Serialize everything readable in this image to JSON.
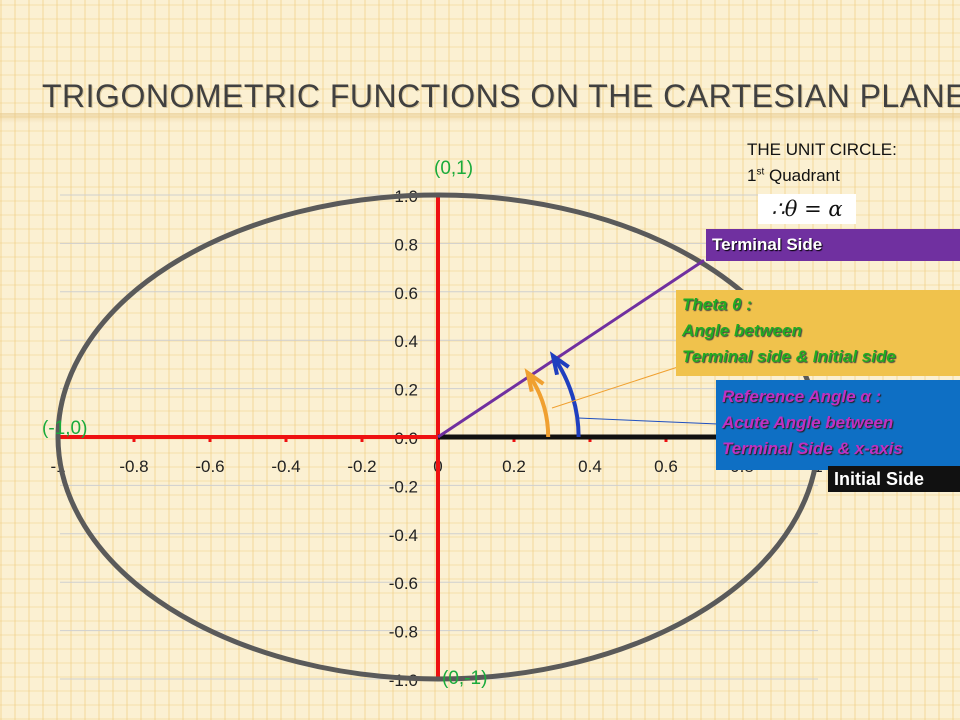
{
  "slide": {
    "title": "TRIGONOMETRIC FUNCTIONS ON THE CARTESIAN PLANE"
  },
  "unit_circle_note": {
    "line1": "THE UNIT CIRCLE:",
    "line2_prefix": "1",
    "line2_sup": "st",
    "line2_suffix": " Quadrant",
    "formula": "∴θ = α"
  },
  "points": {
    "top": "(0,1)",
    "bottom": "(0,-1)",
    "left": "(-1,0)"
  },
  "callouts": {
    "terminal": "Terminal Side",
    "theta": [
      "Theta θ :",
      "Angle between",
      "Terminal side & Initial side"
    ],
    "reference": [
      "Reference Angle α :",
      "Acute Angle between",
      "Terminal Side & x-axis"
    ],
    "initial": "Initial Side"
  },
  "colors": {
    "circle": "#5a5a5a",
    "axes": "#ee1111",
    "terminal_side": "#7030a0",
    "initial_side": "#111111",
    "theta_arc": "#1f3fbf",
    "reference_arc": "#f0a030",
    "point_labels": "#1aab3c"
  },
  "chart_data": {
    "type": "scatter",
    "title": "",
    "xlabel": "",
    "ylabel": "",
    "xlim": [
      -1,
      1
    ],
    "ylim": [
      -1,
      1
    ],
    "grid": true,
    "x_ticks": [
      "-1",
      "-0.8",
      "-0.6",
      "-0.4",
      "-0.2",
      "0",
      "0.2",
      "0.4",
      "0.6",
      "0.8",
      "1"
    ],
    "y_ticks": [
      "1.0",
      "0.8",
      "0.6",
      "0.4",
      "0.2",
      "0.0",
      "-0.2",
      "-0.4",
      "-0.6",
      "-0.8",
      "-1.0"
    ],
    "circle": {
      "cx": 0,
      "cy": 0,
      "r": 1
    },
    "terminal_side": {
      "x": [
        0,
        0.7
      ],
      "y": [
        0,
        0.73
      ]
    },
    "initial_side": {
      "x": [
        0,
        1
      ],
      "y": [
        0,
        0
      ]
    },
    "theta_arc_radius": 0.37,
    "reference_arc_radius": 0.29,
    "angle_degrees": 46
  }
}
